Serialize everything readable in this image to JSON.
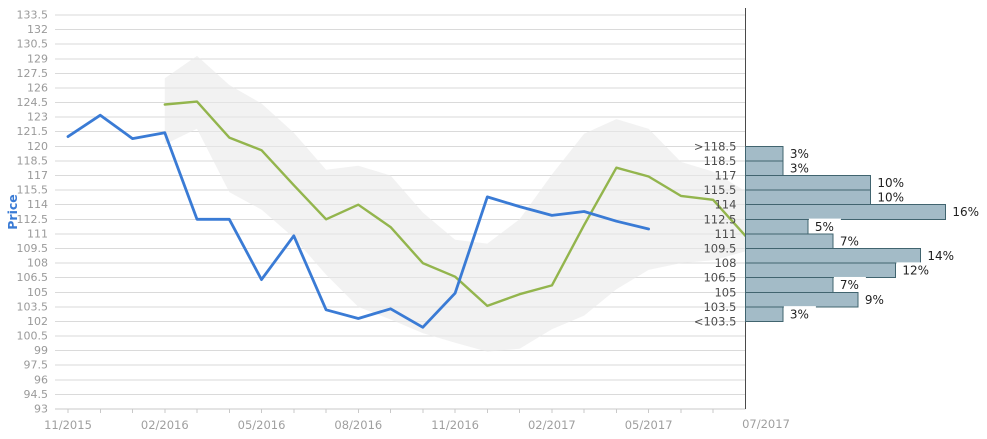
{
  "chart_data": {
    "type": "line",
    "title": "",
    "y_axis": {
      "title": "Price",
      "min": 93,
      "max": 133.5,
      "tick_step": 1.5
    },
    "x_axis": {
      "months": [
        "11/2015",
        "12/2015",
        "01/2016",
        "02/2016",
        "03/2016",
        "04/2016",
        "05/2016",
        "06/2016",
        "07/2016",
        "08/2016",
        "09/2016",
        "10/2016",
        "11/2016",
        "12/2016",
        "01/2017",
        "02/2017",
        "03/2017",
        "04/2017",
        "05/2017",
        "06/2017",
        "07/2017",
        "08/2017"
      ],
      "labeled_ticks": [
        {
          "index": 0,
          "label": "11/2015"
        },
        {
          "index": 3,
          "label": "02/2016"
        },
        {
          "index": 6,
          "label": "05/2016"
        },
        {
          "index": 9,
          "label": "08/2016"
        },
        {
          "index": 12,
          "label": "11/2016"
        },
        {
          "index": 15,
          "label": "02/2017"
        },
        {
          "index": 18,
          "label": "05/2017"
        }
      ]
    },
    "series": [
      {
        "name": "actual",
        "color": "#3a7bd5",
        "start_index": 0,
        "values": [
          121.0,
          123.2,
          120.8,
          121.4,
          112.5,
          112.5,
          106.3,
          110.8,
          103.2,
          102.3,
          103.3,
          101.4,
          104.9,
          114.8,
          113.8,
          112.9,
          113.3,
          112.3,
          111.5
        ]
      },
      {
        "name": "forecast",
        "color": "#93b54d",
        "start_index": 3,
        "values": [
          124.3,
          124.6,
          120.9,
          119.6,
          116.0,
          112.5,
          114.0,
          111.7,
          108.0,
          106.6,
          103.6,
          104.8,
          105.7,
          111.9,
          117.8,
          116.9,
          114.9,
          114.5,
          110.8
        ]
      }
    ],
    "band": {
      "name": "forecast-range",
      "color": "#e9e9e9",
      "start_index": 3,
      "upper": [
        127.0,
        129.3,
        126.3,
        124.4,
        121.4,
        117.6,
        118.0,
        117.0,
        113.2,
        110.4,
        110.0,
        112.5,
        117.1,
        121.3,
        122.8,
        121.8,
        118.4,
        117.4,
        115.4
      ],
      "lower": [
        120.2,
        121.8,
        115.3,
        113.5,
        110.6,
        106.8,
        103.5,
        102.2,
        100.8,
        99.8,
        98.9,
        99.2,
        101.2,
        102.6,
        105.3,
        107.3,
        108.0,
        108.3,
        109.2
      ]
    },
    "histogram": {
      "axis_label": "07/2017",
      "top_edge_price": 120,
      "bin_size": 1.5,
      "bin_edge_labels": [
        ">118.5",
        "118.5",
        "117",
        "115.5",
        "114",
        "112.5",
        "111",
        "109.5",
        "108",
        "106.5",
        "105",
        "103.5",
        "<103.5"
      ],
      "percentages": [
        3,
        3,
        10,
        10,
        16,
        5,
        7,
        14,
        12,
        7,
        9,
        3
      ],
      "bar_fill": "#a3bbc7",
      "bar_stroke": "#41646f"
    },
    "colors": {
      "gridline": "#dadada",
      "axis_line": "#c9c9c9",
      "tick_label": "#9a9a9a",
      "bin_label": "#4d4d4d",
      "percent_label": "#1f1f1f",
      "separator_line": "#4a4a4a",
      "band_fill": "#e9e9e9"
    }
  }
}
